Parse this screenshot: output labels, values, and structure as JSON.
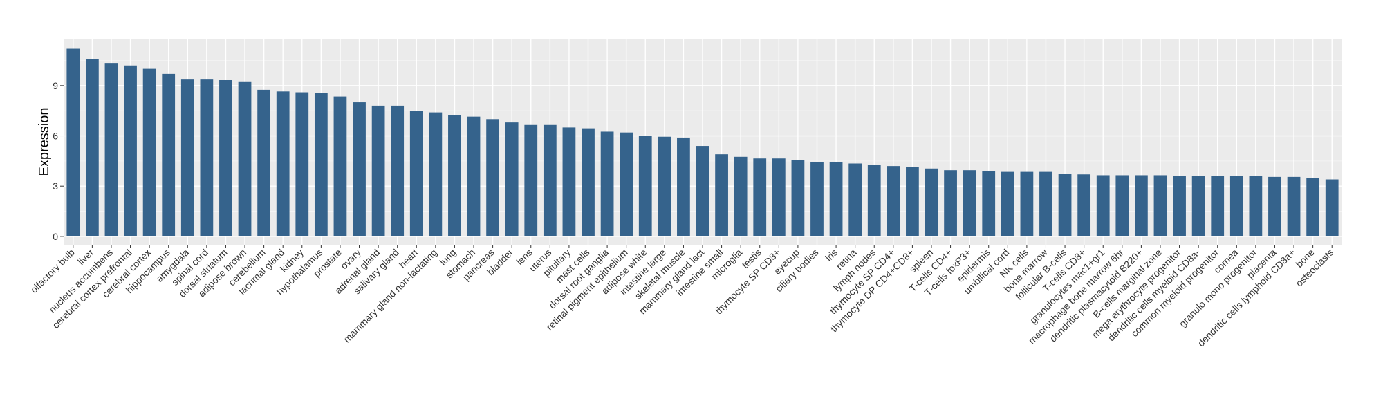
{
  "chart_data": {
    "type": "bar",
    "title": "",
    "xlabel": "",
    "ylabel": "Expression",
    "ylim": [
      -0.5,
      11.8
    ],
    "yticks": [
      0,
      3,
      6,
      9
    ],
    "grid": true,
    "legend": "none",
    "colors": {
      "bar": "#35638C",
      "panel": "#EBEBEB",
      "grid_major": "#FFFFFF",
      "grid_minor": "#F5F5F5"
    },
    "categories": [
      "olfactory bulb",
      "liver",
      "nucleus accumbens",
      "cerebral cortex prefrontal",
      "cerebral cortex",
      "hippocampus",
      "amygdala",
      "spinal cord",
      "dorsal striatum",
      "adipose brown",
      "cerebellum",
      "lacrimal gland",
      "kidney",
      "hypothalamus",
      "prostate",
      "ovary",
      "adrenal gland",
      "salivary gland",
      "heart",
      "mammary gland non-lactating",
      "lung",
      "stomach",
      "pancreas",
      "bladder",
      "lens",
      "uterus",
      "pituitary",
      "mast cells",
      "dorsal root ganglia",
      "retinal pigment epithelium",
      "adipose white",
      "intestine large",
      "skeletal muscle",
      "mammary gland  lact",
      "intestine small",
      "microglia",
      "testis",
      "thymocyte SP CD8+",
      "eyecup",
      "ciliary bodies",
      "iris",
      "retina",
      "lymph nodes",
      "thymocyte SP CD4+",
      "thymocyte DP CD4+CD8+",
      "spleen",
      "T-cells CD4+",
      "T-cells foxP3+",
      "epidermis",
      "umbilical cord",
      "NK cells",
      "bone marrow",
      "follicular B-cells",
      "T-cells CD8+",
      "granulocytes mac1+gr1",
      "macrophage bone marrow 6hr",
      "dendritic plasmacytoid B220+",
      "B-cells marginal zone",
      "mega erythrocyte progenitor",
      "dendritic cells myeloid CD8a-",
      "common myeloid progenitor",
      "cornea",
      "granulo mono progenitor",
      "placenta",
      "dendritic cells lymphoid CD8a+",
      "bone",
      "osteoclasts"
    ],
    "values": [
      11.2,
      10.6,
      10.35,
      10.2,
      10.0,
      9.7,
      9.4,
      9.4,
      9.35,
      9.25,
      8.75,
      8.65,
      8.6,
      8.55,
      8.35,
      8.0,
      7.8,
      7.8,
      7.5,
      7.4,
      7.25,
      7.15,
      7.0,
      6.8,
      6.65,
      6.65,
      6.5,
      6.45,
      6.25,
      6.2,
      6.0,
      5.95,
      5.9,
      5.4,
      4.9,
      4.75,
      4.65,
      4.65,
      4.55,
      4.45,
      4.45,
      4.35,
      4.25,
      4.2,
      4.15,
      4.05,
      3.95,
      3.95,
      3.9,
      3.85,
      3.85,
      3.85,
      3.75,
      3.7,
      3.65,
      3.65,
      3.65,
      3.65,
      3.6,
      3.6,
      3.6,
      3.6,
      3.6,
      3.55,
      3.55,
      3.5,
      3.4
    ]
  }
}
